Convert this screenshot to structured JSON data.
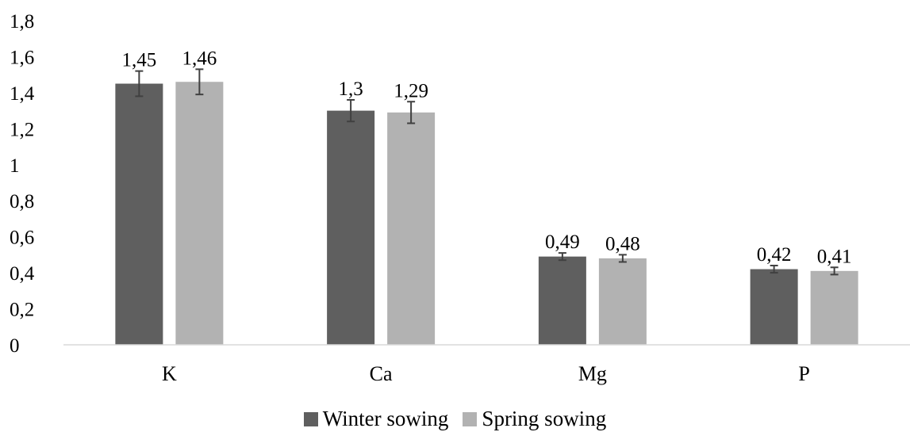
{
  "chart_data": {
    "type": "bar",
    "categories": [
      "K",
      "Ca",
      "Mg",
      "P"
    ],
    "series": [
      {
        "name": "Winter sowing",
        "values": [
          1.45,
          1.3,
          0.49,
          0.42
        ],
        "labels": [
          "1,45",
          "1,3",
          "0,49",
          "0,42"
        ],
        "error": [
          0.07,
          0.06,
          0.02,
          0.02
        ],
        "color": "#5f5f5f"
      },
      {
        "name": "Spring sowing",
        "values": [
          1.46,
          1.29,
          0.48,
          0.41
        ],
        "labels": [
          "1,46",
          "1,29",
          "0,48",
          "0,41"
        ],
        "error": [
          0.07,
          0.06,
          0.02,
          0.02
        ],
        "color": "#b2b2b2"
      }
    ],
    "ylim": [
      0,
      1.8
    ],
    "yticks": [
      0,
      0.2,
      0.4,
      0.6,
      0.8,
      1,
      1.2,
      1.4,
      1.6,
      1.8
    ],
    "ytick_labels": [
      "0",
      "0,2",
      "0,4",
      "0,6",
      "0,8",
      "1",
      "1,2",
      "1,4",
      "1,6",
      "1,8"
    ],
    "title": "",
    "xlabel": "",
    "ylabel": "",
    "grid": false,
    "legend": "bottom-center"
  }
}
